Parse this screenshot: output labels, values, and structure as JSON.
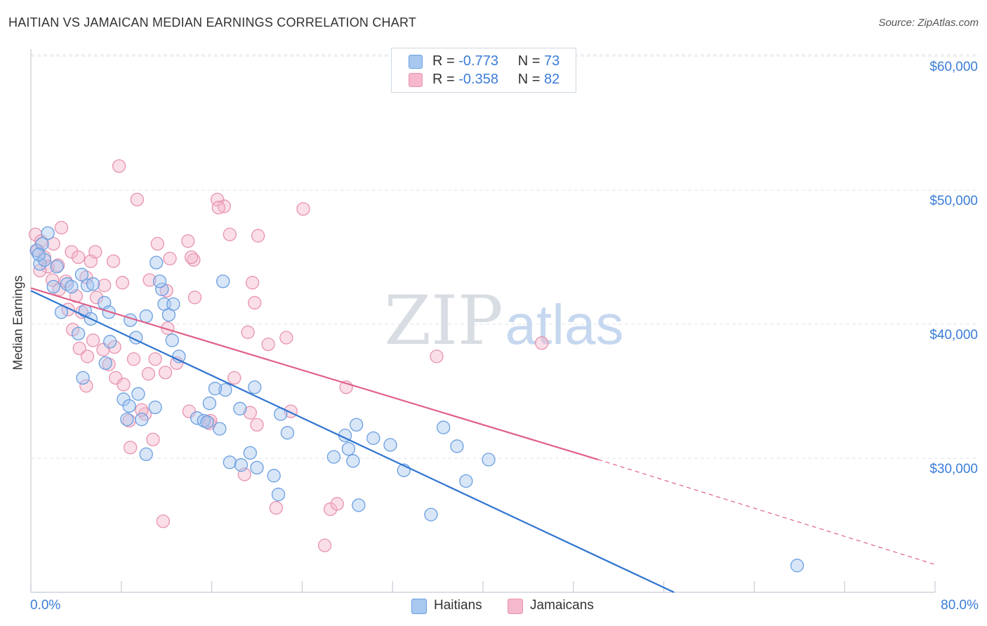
{
  "title": "HAITIAN VS JAMAICAN MEDIAN EARNINGS CORRELATION CHART",
  "source": "Source: ZipAtlas.com",
  "watermark": {
    "zip": "ZIP",
    "atlas": "atlas"
  },
  "colors": {
    "haitians_fill": "#a8c8f0",
    "haitians_stroke": "#6a9fe0",
    "haitians_line": "#2f74d0",
    "jamaicans_fill": "#f5b8cc",
    "jamaicans_stroke": "#e893b0",
    "jamaicans_line": "#e0608a",
    "tick_text": "#3b7dd8",
    "grid": "#dde3ea"
  },
  "legend": {
    "haitians": {
      "r_label": "R =",
      "r_value": "-0.773",
      "n_label": "N =",
      "n_value": "73"
    },
    "jamaicans": {
      "r_label": "R =",
      "r_value": "-0.358",
      "n_label": "N =",
      "n_value": "82"
    }
  },
  "chart_data": {
    "type": "scatter",
    "title": "HAITIAN VS JAMAICAN MEDIAN EARNINGS CORRELATION CHART",
    "xlabel": "",
    "ylabel": "Median Earnings",
    "xlim": [
      0,
      80
    ],
    "ylim": [
      20000,
      62000
    ],
    "x_tick_labels": [
      "0.0%",
      "80.0%"
    ],
    "y_ticks": [
      30000,
      40000,
      50000,
      60000
    ],
    "y_tick_labels": [
      "$30,000",
      "$40,000",
      "$50,000",
      "$60,000"
    ],
    "grid": true,
    "legend_position": "bottom",
    "series": [
      {
        "name": "Haitians",
        "r": -0.773,
        "n": 73,
        "trend": {
          "x": [
            0,
            56.9
          ],
          "y": [
            42500,
            20000
          ]
        },
        "points": [
          [
            0.5,
            45500
          ],
          [
            0.8,
            44500
          ],
          [
            1.0,
            46000
          ],
          [
            1.2,
            44800
          ],
          [
            1.5,
            46800
          ],
          [
            0.7,
            45200
          ],
          [
            2.0,
            42800
          ],
          [
            2.3,
            44300
          ],
          [
            2.7,
            40900
          ],
          [
            3.2,
            43000
          ],
          [
            3.6,
            42800
          ],
          [
            4.5,
            43700
          ],
          [
            5.0,
            42900
          ],
          [
            5.5,
            43000
          ],
          [
            4.8,
            41000
          ],
          [
            4.2,
            39300
          ],
          [
            6.5,
            41600
          ],
          [
            5.3,
            40400
          ],
          [
            6.9,
            40900
          ],
          [
            8.8,
            40300
          ],
          [
            9.3,
            39000
          ],
          [
            10.2,
            40600
          ],
          [
            11.8,
            41500
          ],
          [
            12.2,
            40700
          ],
          [
            11.1,
            44600
          ],
          [
            11.6,
            42600
          ],
          [
            11.4,
            43200
          ],
          [
            12.6,
            41500
          ],
          [
            12.5,
            38800
          ],
          [
            13.1,
            37600
          ],
          [
            7.0,
            38700
          ],
          [
            6.6,
            37100
          ],
          [
            4.6,
            36000
          ],
          [
            9.5,
            34800
          ],
          [
            8.2,
            34400
          ],
          [
            8.7,
            33900
          ],
          [
            11.0,
            33800
          ],
          [
            9.8,
            32900
          ],
          [
            8.5,
            32900
          ],
          [
            10.2,
            30300
          ],
          [
            14.7,
            33000
          ],
          [
            15.3,
            32800
          ],
          [
            15.6,
            32700
          ],
          [
            15.8,
            34100
          ],
          [
            17.2,
            35100
          ],
          [
            16.3,
            35200
          ],
          [
            18.5,
            33700
          ],
          [
            16.7,
            32200
          ],
          [
            19.8,
            35300
          ],
          [
            17.6,
            29700
          ],
          [
            18.6,
            29500
          ],
          [
            19.4,
            30400
          ],
          [
            20.0,
            29300
          ],
          [
            21.5,
            28700
          ],
          [
            22.1,
            33300
          ],
          [
            22.7,
            31900
          ],
          [
            21.9,
            27300
          ],
          [
            28.8,
            32500
          ],
          [
            27.8,
            31700
          ],
          [
            31.8,
            31000
          ],
          [
            28.1,
            30700
          ],
          [
            26.8,
            30100
          ],
          [
            28.5,
            29800
          ],
          [
            30.3,
            31500
          ],
          [
            33.0,
            29100
          ],
          [
            36.5,
            32300
          ],
          [
            37.7,
            30900
          ],
          [
            38.5,
            28300
          ],
          [
            40.5,
            29900
          ],
          [
            35.4,
            25800
          ],
          [
            67.8,
            22000
          ],
          [
            29.0,
            26500
          ],
          [
            17.0,
            43200
          ]
        ]
      },
      {
        "name": "Jamaicans",
        "r": -0.358,
        "n": 82,
        "trend": {
          "x": [
            0,
            50.2
          ],
          "y": [
            42700,
            29900
          ],
          "dashed_to": {
            "x": [
              50.2,
              79.9
            ],
            "y": [
              29900,
              22100
            ]
          }
        },
        "points": [
          [
            0.4,
            46700
          ],
          [
            0.6,
            45500
          ],
          [
            0.9,
            46200
          ],
          [
            1.2,
            45000
          ],
          [
            1.5,
            44300
          ],
          [
            0.8,
            44000
          ],
          [
            2.0,
            46000
          ],
          [
            2.4,
            44400
          ],
          [
            2.7,
            47200
          ],
          [
            1.9,
            43300
          ],
          [
            2.5,
            42600
          ],
          [
            3.1,
            43200
          ],
          [
            3.3,
            41100
          ],
          [
            3.6,
            45400
          ],
          [
            4.2,
            45000
          ],
          [
            4.9,
            43500
          ],
          [
            5.3,
            44700
          ],
          [
            5.7,
            45400
          ],
          [
            4.0,
            42100
          ],
          [
            4.5,
            40900
          ],
          [
            5.8,
            42000
          ],
          [
            6.5,
            42900
          ],
          [
            7.3,
            44700
          ],
          [
            8.1,
            43100
          ],
          [
            3.7,
            39600
          ],
          [
            4.3,
            38200
          ],
          [
            5.0,
            37600
          ],
          [
            5.5,
            38800
          ],
          [
            6.4,
            38100
          ],
          [
            7.4,
            38300
          ],
          [
            6.9,
            37000
          ],
          [
            7.5,
            36000
          ],
          [
            8.2,
            35500
          ],
          [
            9.1,
            37400
          ],
          [
            10.4,
            36300
          ],
          [
            11.0,
            37400
          ],
          [
            11.9,
            36400
          ],
          [
            12.9,
            37100
          ],
          [
            4.9,
            35400
          ],
          [
            8.7,
            32800
          ],
          [
            10.1,
            33300
          ],
          [
            9.8,
            33600
          ],
          [
            10.8,
            31400
          ],
          [
            8.8,
            30800
          ],
          [
            11.7,
            25300
          ],
          [
            12.1,
            39700
          ],
          [
            11.2,
            46000
          ],
          [
            12.3,
            44900
          ],
          [
            13.9,
            46200
          ],
          [
            14.4,
            44800
          ],
          [
            14.2,
            45000
          ],
          [
            14.0,
            33500
          ],
          [
            15.8,
            32600
          ],
          [
            15.9,
            32800
          ],
          [
            16.5,
            49300
          ],
          [
            17.1,
            48800
          ],
          [
            16.6,
            48700
          ],
          [
            17.6,
            46700
          ],
          [
            20.1,
            46600
          ],
          [
            19.6,
            43100
          ],
          [
            19.8,
            41600
          ],
          [
            19.2,
            39400
          ],
          [
            22.6,
            39000
          ],
          [
            23.0,
            33500
          ],
          [
            24.1,
            48600
          ],
          [
            18.9,
            28800
          ],
          [
            19.4,
            33400
          ],
          [
            20.0,
            32500
          ],
          [
            21.7,
            26300
          ],
          [
            26.0,
            23500
          ],
          [
            26.5,
            26200
          ],
          [
            27.1,
            26600
          ],
          [
            27.9,
            35300
          ],
          [
            35.9,
            37600
          ],
          [
            45.2,
            38600
          ],
          [
            7.8,
            51800
          ],
          [
            9.4,
            49300
          ],
          [
            10.5,
            43300
          ],
          [
            12.0,
            42500
          ],
          [
            14.5,
            42000
          ],
          [
            18.0,
            36000
          ],
          [
            21.0,
            38500
          ]
        ]
      }
    ]
  }
}
